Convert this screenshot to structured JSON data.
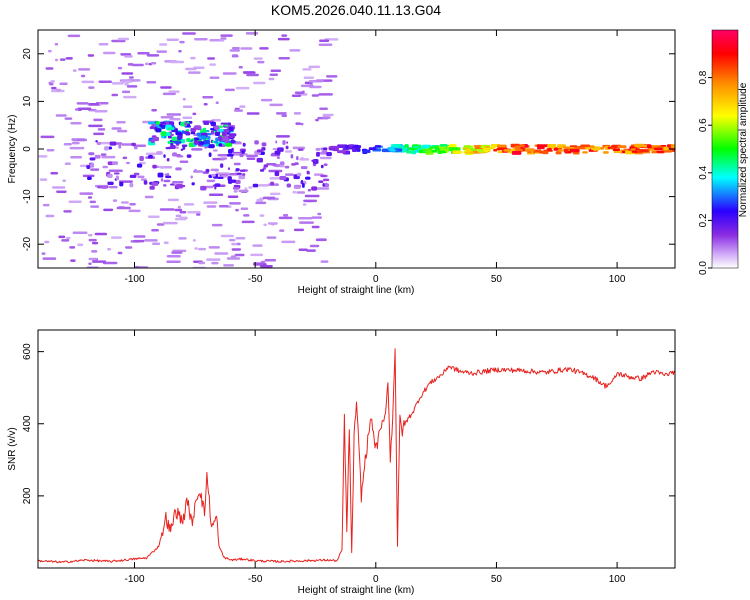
{
  "title": "KOM5.2026.040.11.13.G04",
  "colors": {
    "snr_line": "#e8231f",
    "frame": "#000000",
    "background": "#ffffff"
  },
  "chart_data": [
    {
      "type": "heatmap",
      "title": "KOM5.2026.040.11.13.G04",
      "xlabel": "Height of straight line (km)",
      "ylabel": "Frequency (Hz)",
      "xlim": [
        -140,
        124
      ],
      "ylim": [
        -25,
        25
      ],
      "x_ticks": [
        -100,
        -50,
        0,
        50,
        100
      ],
      "x_tick_labels": [
        "-100",
        "-50",
        "0",
        "50",
        "100"
      ],
      "y_ticks": [
        -20,
        -10,
        0,
        10,
        20
      ],
      "y_tick_labels": [
        "-20",
        "-10",
        "0",
        "10",
        "20"
      ],
      "colorbar": {
        "label": "Normalized spectral amplitude",
        "range": [
          0,
          1
        ],
        "ticks": [
          0.0,
          0.2,
          0.4,
          0.6,
          0.8
        ],
        "tick_labels": [
          "0.0",
          "0.2",
          "0.4",
          "0.6",
          "0.8"
        ],
        "colormap": [
          "#ffffff",
          "#cfa8f7",
          "#8a2be2",
          "#2a00ff",
          "#00ffff",
          "#00ff00",
          "#ffff00",
          "#ff8800",
          "#ff0000",
          "#ff0066"
        ]
      },
      "features": [
        {
          "name": "main_trace",
          "x_range": [
            -20,
            124
          ],
          "freq_hz": 0,
          "amplitude": 0.95
        },
        {
          "name": "sporadic_noise_band",
          "x_range": [
            -140,
            -20
          ],
          "freq_range": [
            -25,
            25
          ],
          "amplitude": 0.1
        },
        {
          "name": "upper_cluster",
          "x_range": [
            -95,
            -60
          ],
          "freq_range": [
            1,
            6
          ],
          "amplitude": 0.3
        }
      ]
    },
    {
      "type": "line",
      "xlabel": "Height of straight line (km)",
      "ylabel": "SNR (v/v)",
      "xlim": [
        -140,
        124
      ],
      "ylim": [
        0,
        660
      ],
      "x_ticks": [
        -100,
        -50,
        0,
        50,
        100
      ],
      "x_tick_labels": [
        "-100",
        "-50",
        "0",
        "50",
        "100"
      ],
      "y_ticks": [
        200,
        400,
        600
      ],
      "y_tick_labels": [
        "200",
        "400",
        "600"
      ],
      "series": [
        {
          "name": "SNR",
          "x": [
            -140,
            -130,
            -120,
            -110,
            -100,
            -95,
            -90,
            -87,
            -85,
            -83,
            -80,
            -78,
            -76,
            -75,
            -73,
            -71,
            -70,
            -68,
            -66,
            -65,
            -63,
            -60,
            -55,
            -50,
            -40,
            -30,
            -20,
            -16,
            -14,
            -13,
            -12,
            -11,
            -10,
            -9,
            -8,
            -6,
            -4,
            -2,
            0,
            2,
            4,
            5,
            6,
            7,
            8,
            9,
            10,
            11,
            12,
            14,
            16,
            18,
            20,
            22,
            25,
            28,
            30,
            35,
            40,
            50,
            60,
            70,
            80,
            90,
            95,
            98,
            100,
            105,
            110,
            115,
            120,
            124
          ],
          "y": [
            20,
            16,
            22,
            18,
            25,
            28,
            60,
            140,
            100,
            160,
            130,
            190,
            110,
            180,
            220,
            150,
            260,
            110,
            140,
            60,
            30,
            22,
            25,
            20,
            18,
            20,
            22,
            20,
            50,
            420,
            100,
            390,
            40,
            360,
            460,
            200,
            320,
            420,
            330,
            380,
            430,
            520,
            300,
            420,
            610,
            60,
            420,
            380,
            400,
            420,
            440,
            470,
            490,
            510,
            525,
            540,
            560,
            545,
            540,
            550,
            548,
            542,
            552,
            530,
            505,
            515,
            540,
            530,
            525,
            545,
            535,
            545
          ]
        }
      ]
    }
  ]
}
